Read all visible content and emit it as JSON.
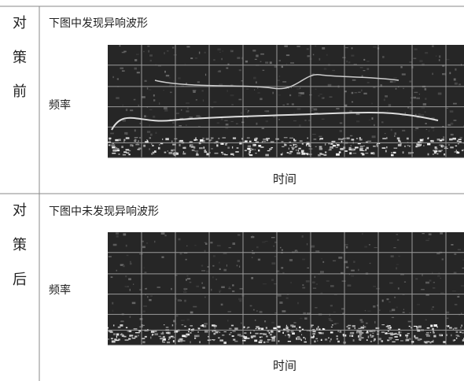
{
  "rows": [
    {
      "label": [
        "对",
        "策",
        "前"
      ],
      "title": "下图中发现异响波形",
      "y_label": "频率",
      "x_label": "时间"
    },
    {
      "label": [
        "对",
        "策",
        "后"
      ],
      "title": "下图中未发现异响波形",
      "y_label": "频率",
      "x_label": "时间"
    }
  ]
}
